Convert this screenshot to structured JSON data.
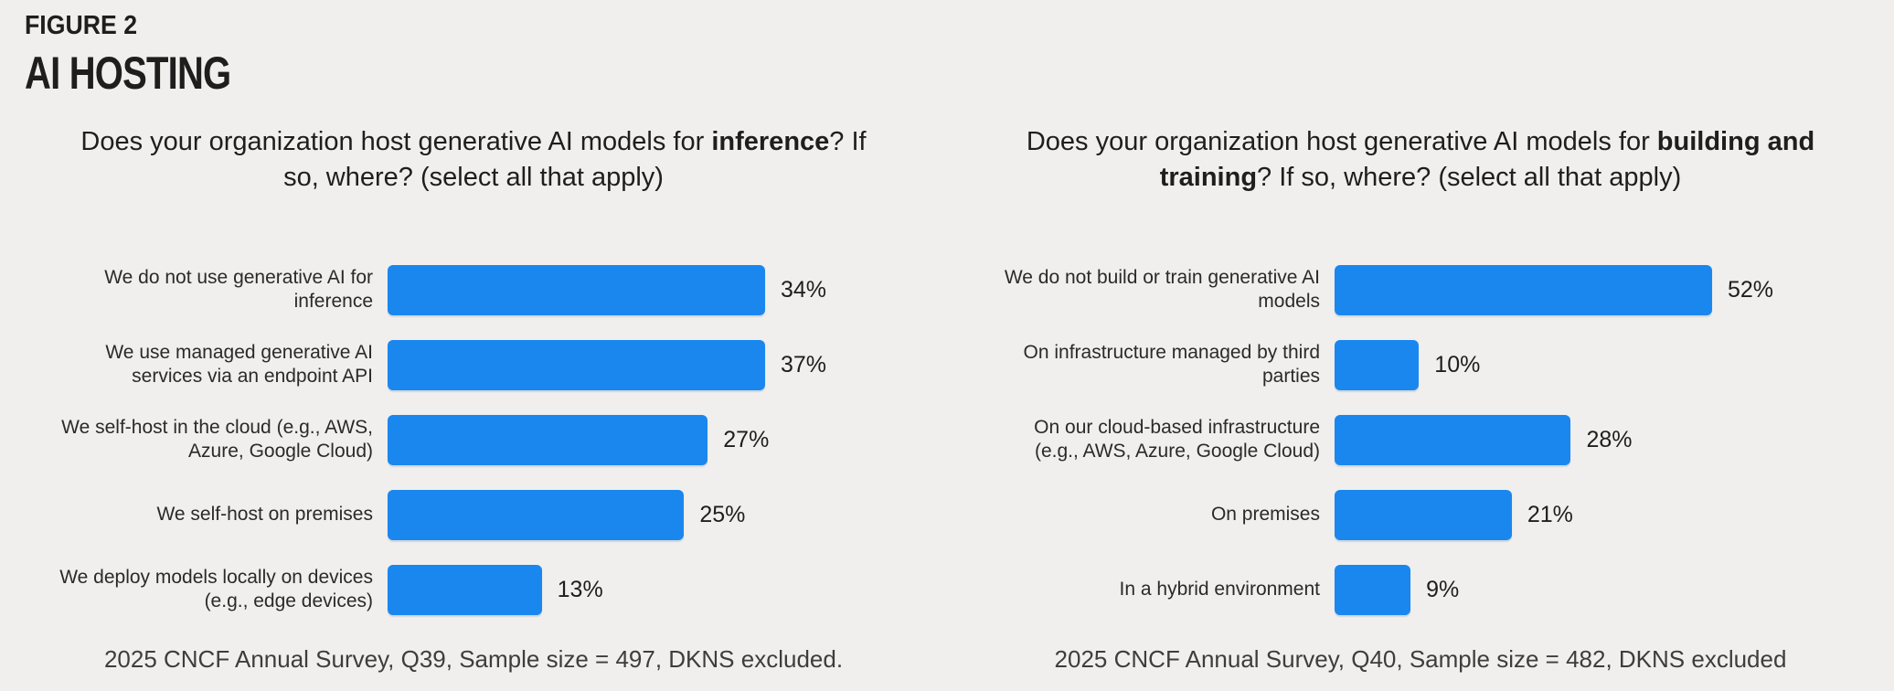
{
  "page": {
    "background_color": "#f0efed",
    "figure_label": "FIGURE 2",
    "figure_title": "AI HOSTING"
  },
  "accent_color": "#1a87ef",
  "chart_data": [
    {
      "type": "bar",
      "orientation": "horizontal",
      "title": "Does your organization host generative AI models for inference? If so, where? (select all that apply)",
      "title_parts": {
        "prefix": "Does your organization host generative AI models for ",
        "bold": "inference",
        "suffix": "? If so, where? (select all that apply)"
      },
      "categories": [
        "We do not use generative AI for inference",
        "We use managed generative AI services via an endpoint API",
        "We self-host in the cloud (e.g., AWS, Azure, Google Cloud)",
        "We self-host on premises",
        "We deploy models locally on devices (e.g., edge devices)"
      ],
      "values": [
        34,
        37,
        27,
        25,
        13
      ],
      "value_labels": [
        "34%",
        "37%",
        "27%",
        "25%",
        "13%"
      ],
      "scale_max": 37,
      "bar_color": "#1a87ef",
      "grid": false,
      "legend": "none",
      "footnote": "2025 CNCF Annual Survey, Q39, Sample size = 497, DKNS excluded."
    },
    {
      "type": "bar",
      "orientation": "horizontal",
      "title": "Does your organization host generative AI models for building and training? If so, where? (select all that apply)",
      "title_parts": {
        "prefix": "Does your organization host generative AI models for ",
        "bold": "building and training",
        "suffix": "? If so, where? (select all that apply)"
      },
      "categories": [
        "We do not build or train generative AI models",
        "On infrastructure managed by third parties",
        "On our cloud-based infrastructure (e.g., AWS, Azure, Google Cloud)",
        "On premises",
        "In a hybrid environment"
      ],
      "values": [
        52,
        10,
        28,
        21,
        9
      ],
      "value_labels": [
        "52%",
        "10%",
        "28%",
        "21%",
        "9%"
      ],
      "scale_max": 52,
      "bar_color": "#1a87ef",
      "grid": false,
      "legend": "none",
      "footnote": "2025 CNCF Annual Survey, Q40, Sample size = 482, DKNS excluded"
    }
  ]
}
